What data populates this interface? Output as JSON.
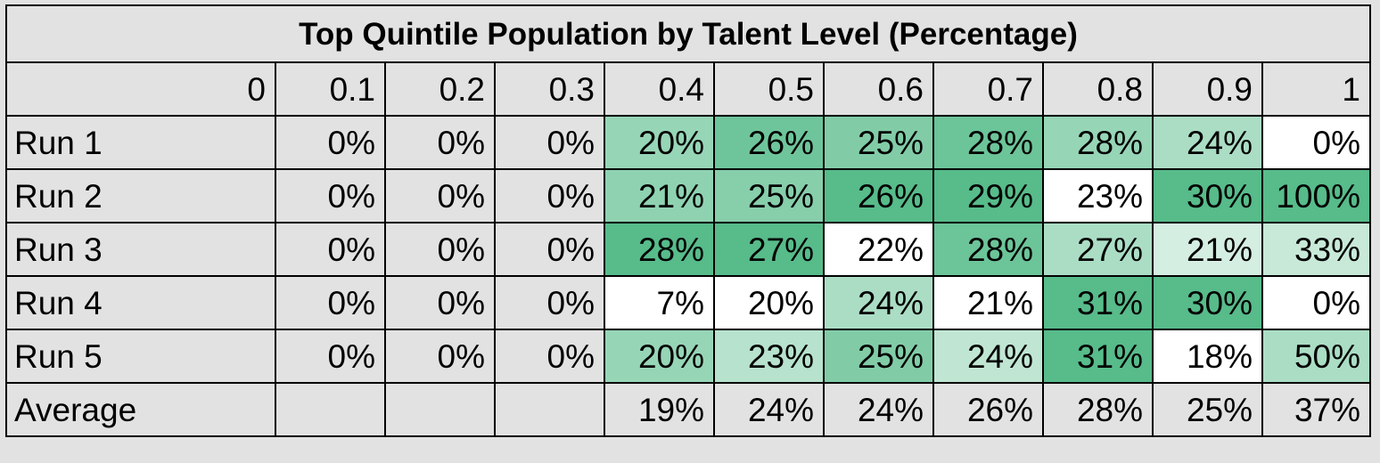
{
  "chart_data": {
    "type": "heatmap",
    "title": "Top Quintile Population by Talent Level (Percentage)",
    "columns": [
      "0",
      "0.1",
      "0.2",
      "0.3",
      "0.4",
      "0.5",
      "0.6",
      "0.7",
      "0.8",
      "0.9",
      "1"
    ],
    "rows": [
      {
        "label": "Run 1",
        "values": [
          "",
          "0%",
          "0%",
          "0%",
          "20%",
          "26%",
          "25%",
          "28%",
          "28%",
          "24%",
          "0%"
        ]
      },
      {
        "label": "Run 2",
        "values": [
          "",
          "0%",
          "0%",
          "0%",
          "21%",
          "25%",
          "26%",
          "29%",
          "23%",
          "30%",
          "100%"
        ]
      },
      {
        "label": "Run 3",
        "values": [
          "",
          "0%",
          "0%",
          "0%",
          "28%",
          "27%",
          "22%",
          "28%",
          "27%",
          "21%",
          "33%"
        ]
      },
      {
        "label": "Run 4",
        "values": [
          "",
          "0%",
          "0%",
          "0%",
          "7%",
          "20%",
          "24%",
          "21%",
          "31%",
          "30%",
          "0%"
        ]
      },
      {
        "label": "Run 5",
        "values": [
          "",
          "0%",
          "0%",
          "0%",
          "20%",
          "23%",
          "25%",
          "24%",
          "31%",
          "18%",
          "50%"
        ]
      },
      {
        "label": "Average",
        "values": [
          "",
          "",
          "",
          "",
          "19%",
          "24%",
          "24%",
          "26%",
          "28%",
          "25%",
          "37%"
        ]
      }
    ],
    "color_scale": {
      "applies_to_columns": [
        "0.4",
        "0.5",
        "0.6",
        "0.7",
        "0.8",
        "0.9",
        "1"
      ],
      "applies_to_rows": [
        "Run 1",
        "Run 2",
        "Run 3",
        "Run 4",
        "Run 5"
      ],
      "per": "column",
      "low_color": "#ffffff",
      "high_color": "#57bb8a"
    }
  }
}
